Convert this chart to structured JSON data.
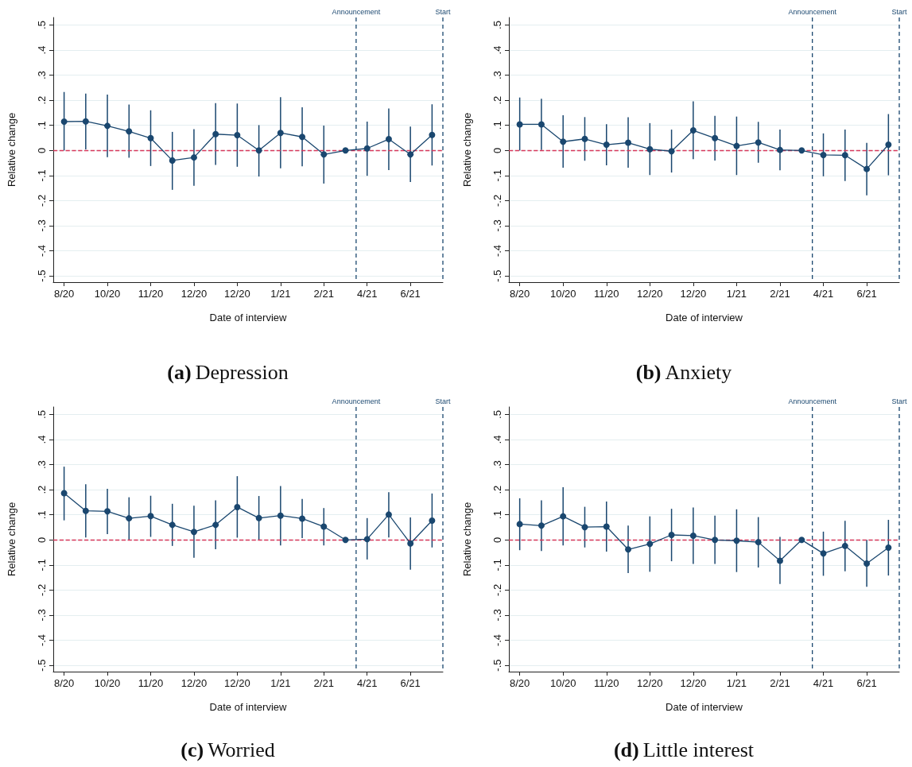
{
  "chart_data": [
    {
      "type": "line",
      "title": "(a) Depression",
      "xlabel": "Date of interview",
      "ylabel": "Relative change",
      "categories": [
        "8/20",
        null,
        "10/20",
        null,
        "11/20",
        null,
        "12/20",
        null,
        "12/20",
        null,
        "1/21",
        null,
        "2/21",
        null,
        "4/21",
        null,
        "6/21",
        null
      ],
      "ylim": [
        -0.525,
        0.53
      ],
      "yticks": [
        {
          "value": -0.5,
          "label": "-.5"
        },
        {
          "value": -0.4,
          "label": "-.4"
        },
        {
          "value": -0.3,
          "label": "-.3"
        },
        {
          "value": -0.2,
          "label": "-.2"
        },
        {
          "value": -0.1,
          "label": "-.1"
        },
        {
          "value": 0,
          "label": "0"
        },
        {
          "value": 0.1,
          "label": ".1"
        },
        {
          "value": 0.2,
          "label": ".2"
        },
        {
          "value": 0.3,
          "label": ".3"
        },
        {
          "value": 0.4,
          "label": ".4"
        },
        {
          "value": 0.5,
          "label": ".5"
        }
      ],
      "grid": "y",
      "marker": "circle",
      "series": [
        {
          "color": "#1a476f",
          "values": [
            0.115,
            0.116,
            0.098,
            0.076,
            0.049,
            -0.04,
            -0.028,
            0.065,
            0.061,
            0,
            0.07,
            0.054,
            -0.016,
            0,
            0.008,
            0.045,
            -0.016,
            0.062
          ],
          "errors": [
            [
              0,
              0.233
            ],
            [
              0.004,
              0.227
            ],
            [
              -0.027,
              0.223
            ],
            [
              -0.029,
              0.183
            ],
            [
              -0.062,
              0.16
            ],
            [
              -0.157,
              0.074
            ],
            [
              -0.141,
              0.085
            ],
            [
              -0.058,
              0.189
            ],
            [
              -0.065,
              0.187
            ],
            [
              -0.104,
              0.101
            ],
            [
              -0.071,
              0.212
            ],
            [
              -0.063,
              0.172
            ],
            [
              -0.132,
              0.099
            ],
            null,
            [
              -0.101,
              0.115
            ],
            [
              -0.078,
              0.167
            ],
            [
              -0.126,
              0.095
            ],
            [
              -0.06,
              0.184
            ]
          ]
        }
      ],
      "ref_lines": [
        {
          "axis": "y",
          "value": 0,
          "color": "#d6375a",
          "line_style": "dashed"
        }
      ],
      "annotations": [
        "Announcement",
        "Start"
      ]
    },
    {
      "type": "line",
      "title": "(b) Anxiety",
      "xlabel": "Date of interview",
      "ylabel": "Relative change",
      "categories": [
        "8/20",
        null,
        "10/20",
        null,
        "11/20",
        null,
        "12/20",
        null,
        "12/20",
        null,
        "1/21",
        null,
        "2/21",
        null,
        "4/21",
        null,
        "6/21",
        null
      ],
      "ylim": [
        -0.525,
        0.53
      ],
      "yticks": [
        {
          "value": -0.5,
          "label": "-.5"
        },
        {
          "value": -0.4,
          "label": "-.4"
        },
        {
          "value": -0.3,
          "label": "-.3"
        },
        {
          "value": -0.2,
          "label": "-.2"
        },
        {
          "value": -0.1,
          "label": "-.1"
        },
        {
          "value": 0,
          "label": "0"
        },
        {
          "value": 0.1,
          "label": ".1"
        },
        {
          "value": 0.2,
          "label": ".2"
        },
        {
          "value": 0.3,
          "label": ".3"
        },
        {
          "value": 0.4,
          "label": ".4"
        },
        {
          "value": 0.5,
          "label": ".5"
        }
      ],
      "grid": "y",
      "marker": "circle",
      "series": [
        {
          "color": "#1a476f",
          "values": [
            0.104,
            0.104,
            0.035,
            0.046,
            0.023,
            0.031,
            0.005,
            -0.003,
            0.08,
            0.049,
            0.018,
            0.032,
            0.002,
            0,
            -0.018,
            -0.019,
            -0.074,
            0.023
          ],
          "errors": [
            [
              0,
              0.211
            ],
            [
              0.002,
              0.206
            ],
            [
              -0.069,
              0.14
            ],
            [
              -0.041,
              0.133
            ],
            [
              -0.059,
              0.105
            ],
            [
              -0.069,
              0.132
            ],
            [
              -0.098,
              0.109
            ],
            [
              -0.088,
              0.083
            ],
            [
              -0.035,
              0.196
            ],
            [
              -0.04,
              0.138
            ],
            [
              -0.098,
              0.135
            ],
            [
              -0.049,
              0.114
            ],
            [
              -0.079,
              0.083
            ],
            null,
            [
              -0.103,
              0.068
            ],
            [
              -0.122,
              0.083
            ],
            [
              -0.179,
              0.03
            ],
            [
              -0.099,
              0.145
            ]
          ]
        }
      ],
      "ref_lines": [
        {
          "axis": "y",
          "value": 0,
          "color": "#d6375a",
          "line_style": "dashed"
        }
      ],
      "annotations": [
        "Announcement",
        "Start"
      ]
    },
    {
      "type": "line",
      "title": "(c) Worried",
      "xlabel": "Date of interview",
      "ylabel": "Relative change",
      "categories": [
        "8/20",
        null,
        "10/20",
        null,
        "11/20",
        null,
        "12/20",
        null,
        "12/20",
        null,
        "1/21",
        null,
        "2/21",
        null,
        "4/21",
        null,
        "6/21",
        null
      ],
      "ylim": [
        -0.525,
        0.53
      ],
      "yticks": [
        {
          "value": -0.5,
          "label": "-.5"
        },
        {
          "value": -0.4,
          "label": "-.4"
        },
        {
          "value": -0.3,
          "label": "-.3"
        },
        {
          "value": -0.2,
          "label": "-.2"
        },
        {
          "value": -0.1,
          "label": "-.1"
        },
        {
          "value": 0,
          "label": "0"
        },
        {
          "value": 0.1,
          "label": ".1"
        },
        {
          "value": 0.2,
          "label": ".2"
        },
        {
          "value": 0.3,
          "label": ".3"
        },
        {
          "value": 0.4,
          "label": ".4"
        },
        {
          "value": 0.5,
          "label": ".5"
        }
      ],
      "grid": "y",
      "marker": "circle",
      "series": [
        {
          "color": "#1a476f",
          "values": [
            0.186,
            0.116,
            0.114,
            0.086,
            0.095,
            0.06,
            0.032,
            0.06,
            0.131,
            0.087,
            0.097,
            0.085,
            0.053,
            0,
            0.003,
            0.101,
            -0.014,
            0.077
          ],
          "errors": [
            [
              0.078,
              0.292
            ],
            [
              0.01,
              0.222
            ],
            [
              0.023,
              0.204
            ],
            [
              0,
              0.17
            ],
            [
              0.012,
              0.176
            ],
            [
              -0.024,
              0.144
            ],
            [
              -0.071,
              0.136
            ],
            [
              -0.037,
              0.158
            ],
            [
              0.009,
              0.254
            ],
            [
              0,
              0.175
            ],
            [
              -0.022,
              0.215
            ],
            [
              0.007,
              0.163
            ],
            [
              -0.022,
              0.127
            ],
            null,
            [
              -0.078,
              0.087
            ],
            [
              0.01,
              0.19
            ],
            [
              -0.119,
              0.09
            ],
            [
              -0.03,
              0.185
            ]
          ]
        }
      ],
      "ref_lines": [
        {
          "axis": "y",
          "value": 0,
          "color": "#d6375a",
          "line_style": "dashed"
        }
      ],
      "annotations": [
        "Announcement",
        "Start"
      ]
    },
    {
      "type": "line",
      "title": "(d) Little interest",
      "xlabel": "Date of interview",
      "ylabel": "Relative change",
      "categories": [
        "8/20",
        null,
        "10/20",
        null,
        "11/20",
        null,
        "12/20",
        null,
        "12/20",
        null,
        "1/21",
        null,
        "2/21",
        null,
        "4/21",
        null,
        "6/21",
        null
      ],
      "ylim": [
        -0.525,
        0.53
      ],
      "yticks": [
        {
          "value": -0.5,
          "label": "-.5"
        },
        {
          "value": -0.4,
          "label": "-.4"
        },
        {
          "value": -0.3,
          "label": "-.3"
        },
        {
          "value": -0.2,
          "label": "-.2"
        },
        {
          "value": -0.1,
          "label": "-.1"
        },
        {
          "value": 0,
          "label": "0"
        },
        {
          "value": 0.1,
          "label": ".1"
        },
        {
          "value": 0.2,
          "label": ".2"
        },
        {
          "value": 0.3,
          "label": ".3"
        },
        {
          "value": 0.4,
          "label": ".4"
        },
        {
          "value": 0.5,
          "label": ".5"
        }
      ],
      "grid": "y",
      "marker": "circle",
      "series": [
        {
          "color": "#1a476f",
          "values": [
            0.063,
            0.057,
            0.094,
            0.051,
            0.053,
            -0.038,
            -0.016,
            0.02,
            0.017,
            0,
            -0.003,
            -0.009,
            -0.083,
            0,
            -0.054,
            -0.024,
            -0.094,
            -0.031
          ],
          "errors": [
            [
              -0.041,
              0.166
            ],
            [
              -0.044,
              0.158
            ],
            [
              -0.022,
              0.21
            ],
            [
              -0.03,
              0.132
            ],
            [
              -0.047,
              0.153
            ],
            [
              -0.132,
              0.057
            ],
            [
              -0.127,
              0.094
            ],
            [
              -0.085,
              0.124
            ],
            [
              -0.096,
              0.129
            ],
            [
              -0.096,
              0.097
            ],
            [
              -0.128,
              0.122
            ],
            [
              -0.11,
              0.091
            ],
            [
              -0.176,
              0.012
            ],
            null,
            [
              -0.143,
              0.033
            ],
            [
              -0.125,
              0.076
            ],
            [
              -0.187,
              0
            ],
            [
              -0.142,
              0.08
            ]
          ]
        }
      ],
      "ref_lines": [
        {
          "axis": "y",
          "value": 0,
          "color": "#d6375a",
          "line_style": "dashed"
        }
      ],
      "annotations": [
        "Announcement",
        "Start"
      ]
    }
  ]
}
